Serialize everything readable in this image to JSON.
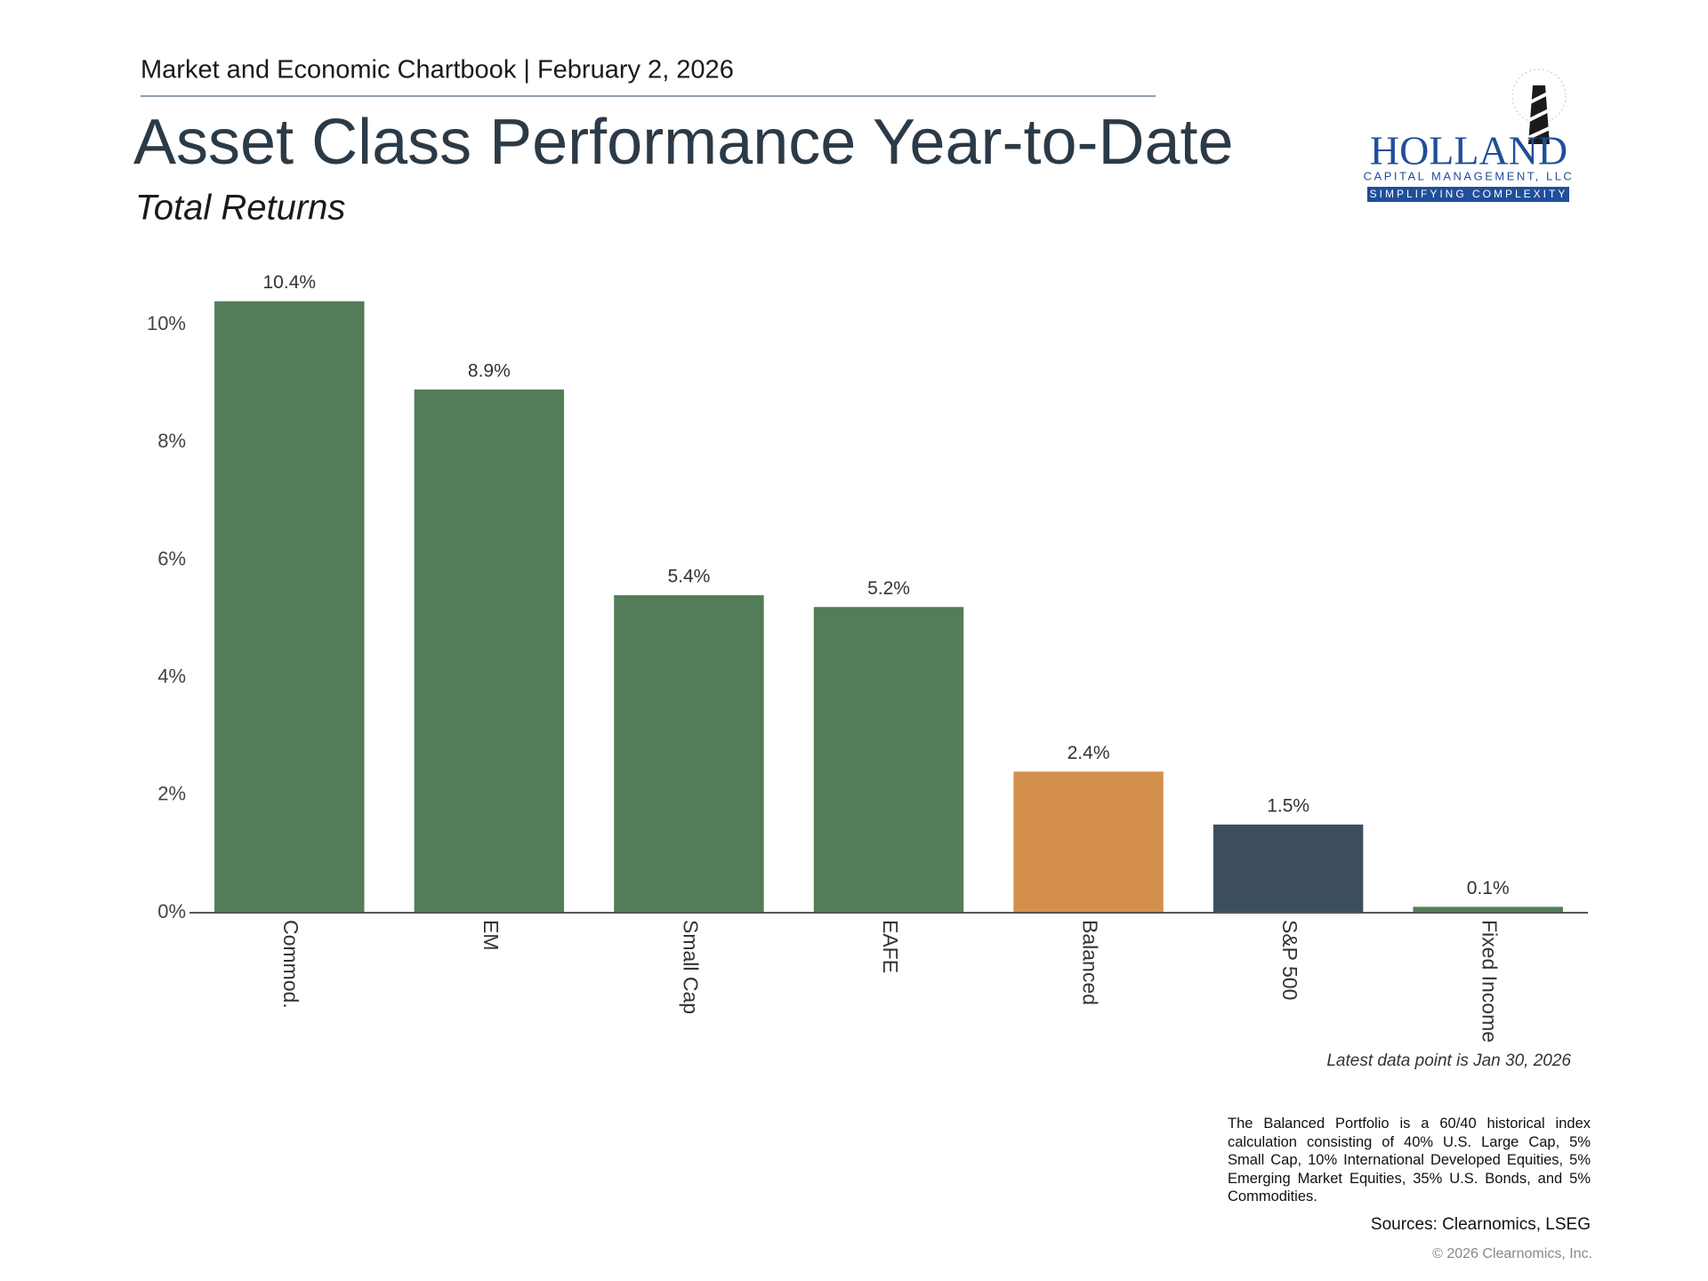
{
  "header": "Market and Economic Chartbook | February 2, 2026",
  "logo": {
    "name": "HOLLAND",
    "company": "CAPITAL MANAGEMENT, LLC",
    "tagline": "SIMPLIFYING COMPLEXITY"
  },
  "chart_data": {
    "type": "bar",
    "title": "Asset Class Performance Year-to-Date",
    "subtitle": "Total Returns",
    "categories": [
      "Commod.",
      "EM",
      "Small Cap",
      "EAFE",
      "Balanced",
      "S&P 500",
      "Fixed Income"
    ],
    "values": [
      10.4,
      8.9,
      5.4,
      5.2,
      2.4,
      1.5,
      0.1
    ],
    "value_labels": [
      "10.4%",
      "8.9%",
      "5.4%",
      "5.2%",
      "2.4%",
      "1.5%",
      "0.1%"
    ],
    "colors": [
      "#537c59",
      "#537c59",
      "#537c59",
      "#537c59",
      "#d58f4c",
      "#3c4e5e",
      "#537c59"
    ],
    "ylim": [
      0,
      11
    ],
    "yticks": [
      {
        "value": 0,
        "label": "0%"
      },
      {
        "value": 2,
        "label": "2%"
      },
      {
        "value": 4,
        "label": "4%"
      },
      {
        "value": 6,
        "label": "6%"
      },
      {
        "value": 8,
        "label": "8%"
      },
      {
        "value": 10,
        "label": "10%"
      }
    ],
    "grid": false,
    "footnote": "Latest data point is Jan 30, 2026"
  },
  "note": "The Balanced Portfolio is a 60/40 historical index calculation consisting of 40% U.S. Large Cap, 5% Small Cap, 10% International Developed Equities, 5% Emerging Market Equities, 35% U.S. Bonds, and 5% Commodities.",
  "sources": "Sources: Clearnomics, LSEG",
  "copyright": "© 2026 Clearnomics, Inc."
}
